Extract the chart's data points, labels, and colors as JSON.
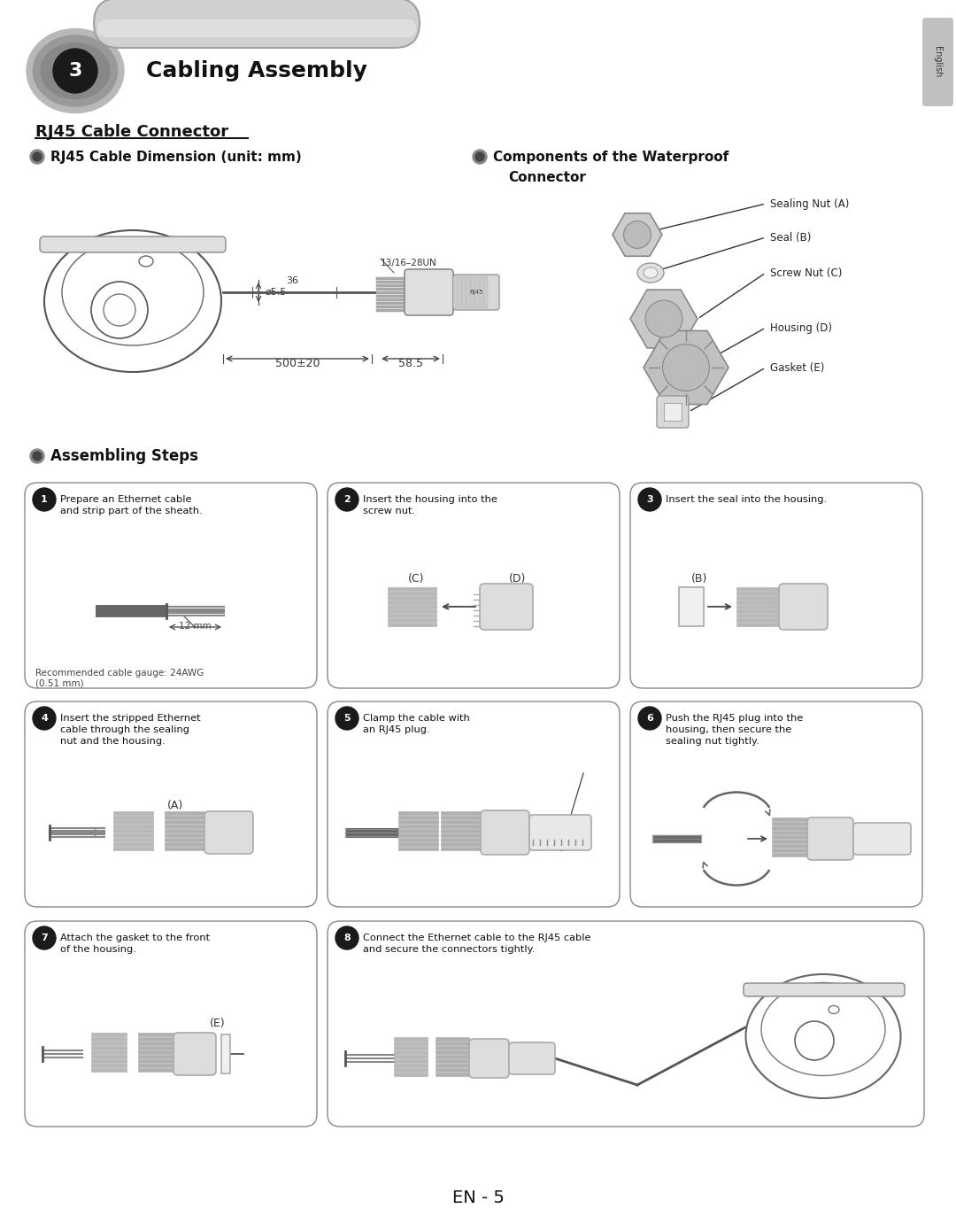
{
  "bg_color": "#ffffff",
  "title_num": "3",
  "title_text": "Cabling Assembly",
  "subtitle": "RJ45 Cable Connector",
  "dim_title": "RJ45 Cable Dimension (unit: mm)",
  "comp_title_line1": "Components of the Waterproof",
  "comp_title_line2": "Connector",
  "assembling_title": "Assembling Steps",
  "step1_text": "Prepare an Ethernet cable\nand strip part of the sheath.",
  "step1_note": "Recommended cable gauge: 24AWG\n(0.51 mm)",
  "step2_text": "Insert the housing into the\nscrew nut.",
  "step3_text": "Insert the seal into the housing.",
  "step4_text": "Insert the stripped Ethernet\ncable through the sealing\nnut and the housing.",
  "step5_text": "Clamp the cable with\nan RJ45 plug.",
  "step6_text": "Push the RJ45 plug into the\nhousing, then secure the\nsealing nut tightly.",
  "step7_text": "Attach the gasket to the front\nof the housing.",
  "step8_text": "Connect the Ethernet cable to the RJ45 cable\nand secure the connectors tightly.",
  "footer": "EN - 5",
  "tab_text": "English",
  "tab_color": "#c0c0c0",
  "box_fill": "#ffffff",
  "box_edge": "#888888",
  "circle_fill": "#1a1a1a",
  "bullet_outer": "#888888",
  "bullet_inner": "#444444",
  "dim_color": "#333333",
  "text_color": "#111111",
  "note_color": "#444444"
}
